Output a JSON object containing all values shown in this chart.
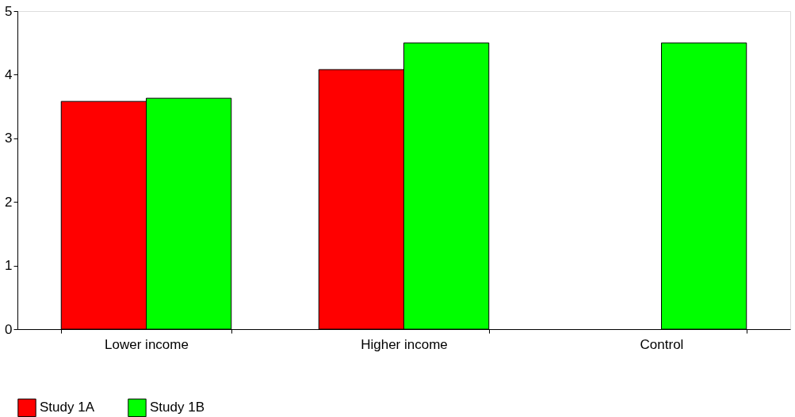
{
  "chart_data": {
    "type": "bar",
    "categories": [
      "Lower income",
      "Higher income",
      "Control"
    ],
    "series": [
      {
        "name": "Study 1A",
        "color": "#ff0000",
        "values": [
          3.58,
          4.08,
          null
        ]
      },
      {
        "name": "Study 1B",
        "color": "#00ff00",
        "values": [
          3.63,
          4.5,
          4.5
        ]
      }
    ],
    "ylim": [
      0,
      5
    ],
    "yticks": [
      0,
      1,
      2,
      3,
      4,
      5
    ],
    "grid": false,
    "legend": "bottom"
  }
}
